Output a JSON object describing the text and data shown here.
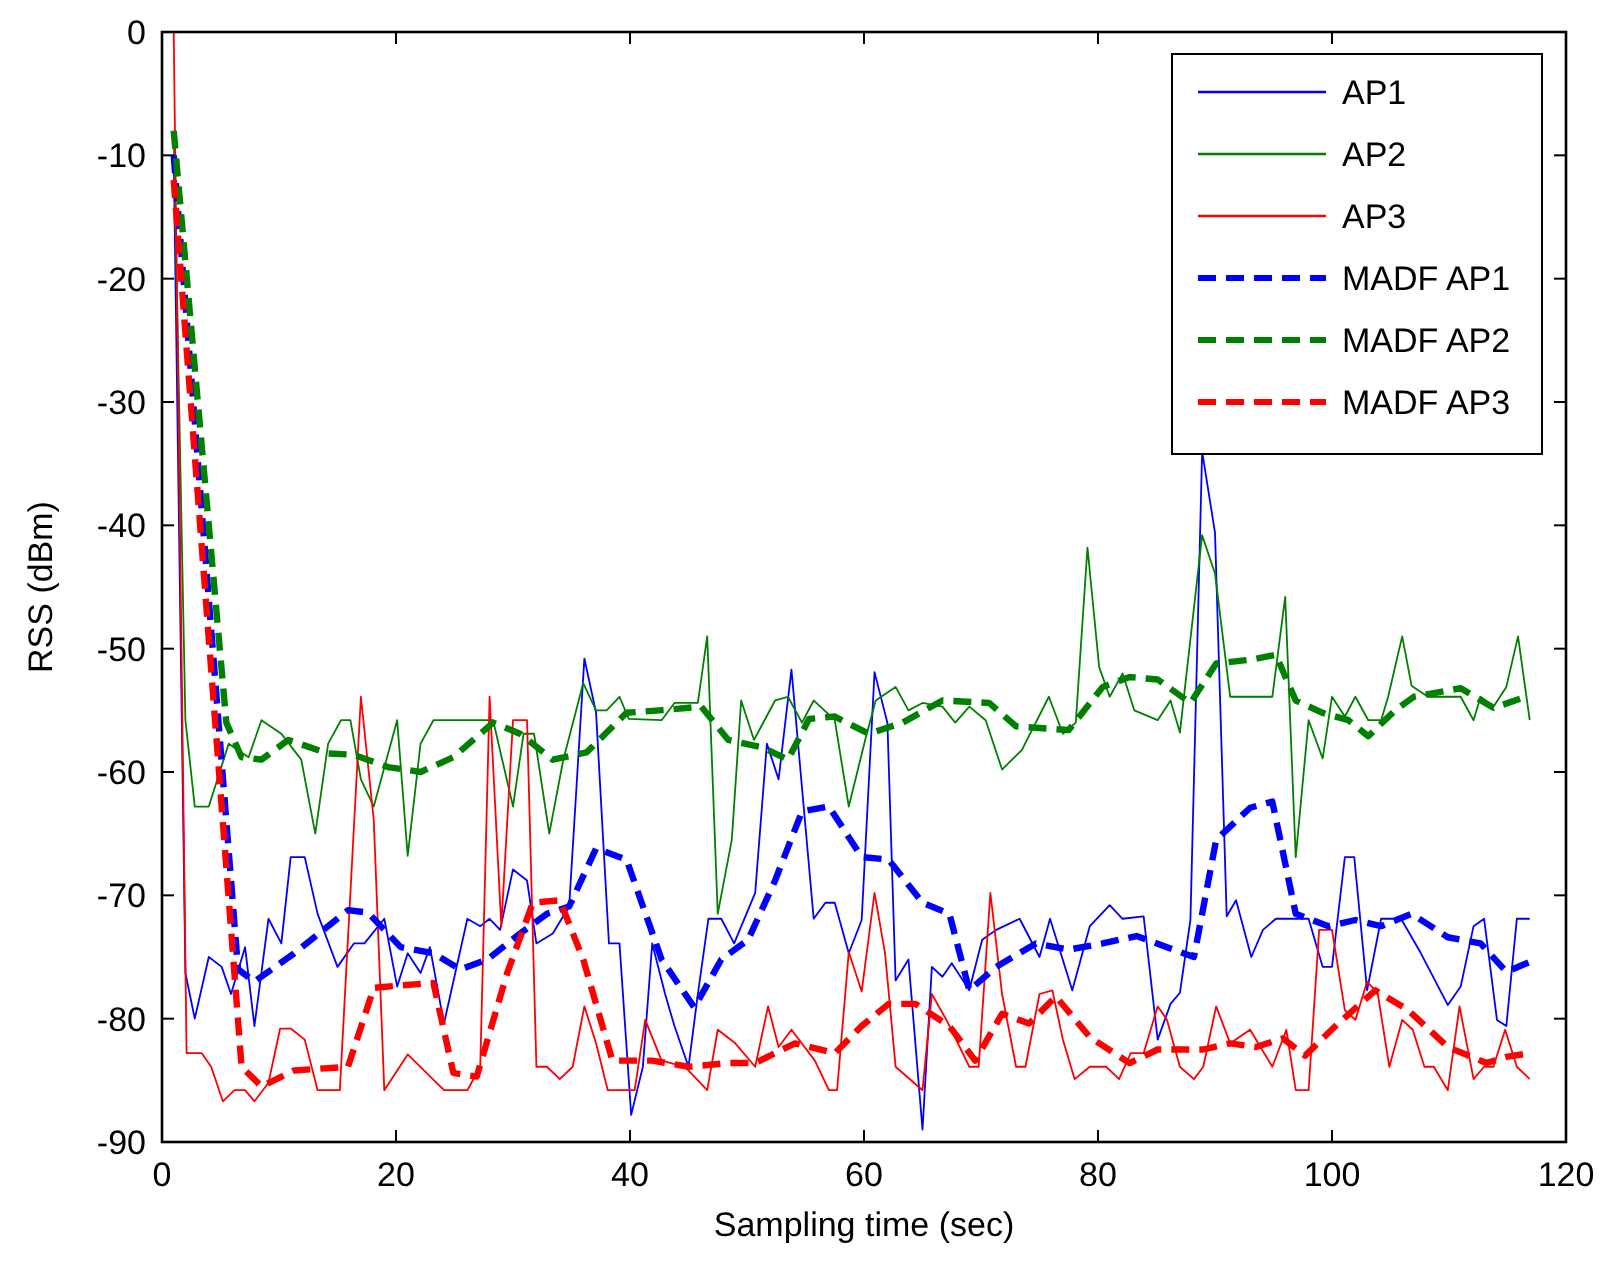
{
  "chart_data": {
    "type": "line",
    "xlabel": "Sampling time (sec)",
    "ylabel": "RSS (dBm)",
    "xlim": [
      0,
      120
    ],
    "ylim": [
      -90,
      0
    ],
    "xticks": [
      0,
      20,
      40,
      60,
      80,
      100,
      120
    ],
    "yticks": [
      -90,
      -80,
      -70,
      -60,
      -50,
      -40,
      -30,
      -20,
      -10,
      0
    ],
    "grid": false,
    "legend": "top right",
    "marker": "none",
    "series": [
      {
        "name": "AP1",
        "color": "#0000ff",
        "line_style": "solid",
        "x": [
          1,
          2,
          2.8,
          4,
          5.1,
          5.9,
          7.1,
          7.9,
          9.1,
          10.2,
          11,
          12.2,
          13.3,
          15,
          16.4,
          17.3,
          19,
          20.1,
          21,
          22.1,
          22.9,
          24.1,
          26.1,
          27.2,
          28,
          28.9,
          30,
          31.2,
          32,
          33.4,
          34.8,
          36.1,
          37.1,
          38.2,
          39.1,
          40.1,
          41.1,
          41.9,
          43,
          43.8,
          45,
          45.8,
          46.7,
          47.8,
          48.9,
          50.7,
          51.7,
          52.7,
          53.8,
          55.7,
          56.7,
          57.5,
          58.7,
          59.8,
          60.9,
          62,
          62.7,
          63.8,
          65,
          65.8,
          66.7,
          67.5,
          69,
          70.1,
          71.3,
          73.3,
          75,
          75.9,
          77.8,
          79.3,
          81,
          82.1,
          83.9,
          85.1,
          86.2,
          87,
          87.9,
          88.9,
          90,
          91,
          91.8,
          93.1,
          94.1,
          95.2,
          98,
          99.2,
          100,
          101.1,
          101.9,
          103,
          104.2,
          105.9,
          107.6,
          109.9,
          111,
          112.1,
          113,
          114.1,
          114.9,
          115.8,
          116.9
        ],
        "values": [
          -10,
          -76.3,
          -80,
          -75,
          -75.8,
          -78,
          -74.2,
          -80.6,
          -71.9,
          -73.9,
          -66.9,
          -66.9,
          -71.5,
          -75.8,
          -73.9,
          -73.9,
          -71.9,
          -77.4,
          -74.7,
          -76.3,
          -74.2,
          -80.4,
          -71.9,
          -72.5,
          -71.9,
          -72.8,
          -67.9,
          -68.8,
          -73.9,
          -73.1,
          -70.9,
          -50.8,
          -55.2,
          -73.9,
          -73.9,
          -87.8,
          -83.9,
          -73.9,
          -78,
          -80.6,
          -83.9,
          -78,
          -71.9,
          -71.9,
          -73.9,
          -69.8,
          -57.7,
          -60.6,
          -51.7,
          -71.9,
          -70.6,
          -70.6,
          -74.7,
          -72,
          -51.9,
          -56,
          -76.9,
          -75.2,
          -89,
          -75.8,
          -76.6,
          -75.5,
          -77.7,
          -73.6,
          -72.8,
          -71.9,
          -75,
          -71.9,
          -77.7,
          -72.5,
          -70.8,
          -71.9,
          -71.7,
          -81.7,
          -78.8,
          -77.9,
          -72,
          -34,
          -40.6,
          -71.7,
          -70.4,
          -75,
          -72.8,
          -71.9,
          -71.9,
          -75.8,
          -75.8,
          -66.9,
          -66.9,
          -77.7,
          -71.9,
          -71.9,
          -74.7,
          -78.9,
          -77.4,
          -72.5,
          -71.9,
          -80.1,
          -80.6,
          -71.9,
          -71.9
        ]
      },
      {
        "name": "AP2",
        "color": "#008000",
        "line_style": "solid",
        "x": [
          1,
          2,
          2.8,
          4,
          5.7,
          7.4,
          8.5,
          10.2,
          11.9,
          13.1,
          14.2,
          15.3,
          16.1,
          17,
          18.1,
          20.1,
          21,
          22.1,
          23.2,
          28.3,
          30,
          30.9,
          31.8,
          33.1,
          34.3,
          36,
          37.1,
          38,
          39.1,
          39.9,
          42.7,
          43.8,
          45.8,
          46.6,
          47.5,
          48.7,
          49.5,
          50.6,
          52.4,
          53.5,
          54.7,
          55.7,
          57.5,
          58.7,
          60.1,
          61,
          62.7,
          63.8,
          65,
          66.7,
          67.8,
          69,
          70.4,
          71.8,
          73.5,
          75.8,
          77,
          78.1,
          79.1,
          80.1,
          81,
          82.1,
          83.1,
          85.1,
          86.2,
          87,
          88.9,
          90,
          91.3,
          94.9,
          96,
          96.9,
          98,
          99.2,
          100,
          101.1,
          102,
          103.1,
          104.2,
          104.8,
          106,
          106.8,
          108.2,
          111,
          112.1,
          112.7,
          113.8,
          114.9,
          115.9,
          116.9
        ],
        "values": [
          -8,
          -55.8,
          -62.8,
          -62.8,
          -57.7,
          -58.8,
          -55.8,
          -56.9,
          -59,
          -65,
          -57.7,
          -55.8,
          -55.8,
          -60.6,
          -62.8,
          -55.8,
          -66.8,
          -57.7,
          -55.8,
          -55.8,
          -62.8,
          -56.9,
          -56.9,
          -65,
          -59,
          -52.8,
          -55,
          -55,
          -53.9,
          -55.7,
          -55.8,
          -54.4,
          -54.4,
          -49,
          -71.5,
          -65.5,
          -54.2,
          -57.4,
          -54.2,
          -53.9,
          -56,
          -54.2,
          -55.8,
          -62.8,
          -57.4,
          -54.2,
          -53.1,
          -55,
          -54.4,
          -54.7,
          -56,
          -54.7,
          -55.8,
          -59.8,
          -58.2,
          -53.9,
          -56.9,
          -56,
          -41.8,
          -51.5,
          -53.9,
          -52,
          -55,
          -55.8,
          -54.2,
          -56.8,
          -40.8,
          -43.9,
          -53.9,
          -53.9,
          -45.8,
          -66.9,
          -55.8,
          -58.9,
          -53.9,
          -55.5,
          -53.9,
          -55.8,
          -55.8,
          -53.9,
          -49,
          -53,
          -53.9,
          -53.9,
          -55.8,
          -53.9,
          -54.7,
          -53.1,
          -49,
          -55.8
        ]
      },
      {
        "name": "AP3",
        "color": "#ff0000",
        "line_style": "solid",
        "x": [
          1,
          2.1,
          3.4,
          4.2,
          5.2,
          6.2,
          7.1,
          7.9,
          9.1,
          10.1,
          11,
          12.2,
          13.3,
          15.2,
          17,
          18.1,
          19,
          21,
          24.1,
          26.1,
          27.2,
          28,
          29,
          30,
          31.2,
          32,
          32.9,
          34,
          35.1,
          36.1,
          37.1,
          38.1,
          39.4,
          40.4,
          41.3,
          42.7,
          44.7,
          46.6,
          47.5,
          49,
          50.7,
          51.8,
          52.7,
          53.8,
          55.8,
          57,
          57.7,
          58.7,
          59.8,
          60.9,
          61.8,
          62.7,
          65,
          65.8,
          67.1,
          69,
          69.8,
          70.8,
          71.8,
          73,
          73.8,
          75,
          76.1,
          77,
          78,
          79.3,
          80.7,
          81.8,
          82.8,
          83.9,
          85.1,
          85.9,
          87,
          88.2,
          89,
          90.1,
          91.3,
          93,
          94.9,
          96.1,
          96.9,
          98,
          98.9,
          100,
          101.1,
          102,
          103,
          103.9,
          104.9,
          106,
          106.9,
          107.9,
          108.7,
          109.9,
          110.9,
          112.1,
          113,
          113.8,
          114.8,
          115.8,
          116.9
        ],
        "values": [
          0,
          -82.8,
          -82.8,
          -83.9,
          -86.7,
          -85.8,
          -85.8,
          -86.7,
          -85.2,
          -80.8,
          -80.8,
          -81.7,
          -85.8,
          -85.8,
          -53.9,
          -63.9,
          -85.8,
          -82.9,
          -85.8,
          -85.8,
          -83.9,
          -53.9,
          -72.5,
          -55.8,
          -55.8,
          -83.9,
          -83.9,
          -84.9,
          -83.9,
          -79,
          -82,
          -85.8,
          -85.8,
          -85.8,
          -80.1,
          -83.4,
          -83.9,
          -85.8,
          -80.9,
          -82,
          -83.9,
          -79,
          -82.3,
          -80.9,
          -83.4,
          -85.8,
          -85.8,
          -74.6,
          -77.8,
          -69.8,
          -74.7,
          -83.9,
          -85.8,
          -78,
          -80.2,
          -83.9,
          -83.9,
          -69.8,
          -78,
          -83.9,
          -83.9,
          -78,
          -77.7,
          -81.7,
          -84.9,
          -83.9,
          -83.9,
          -84.9,
          -82.8,
          -82.8,
          -79,
          -80.1,
          -83.9,
          -84.9,
          -83.9,
          -79,
          -82,
          -80.9,
          -83.9,
          -80.9,
          -85.8,
          -85.8,
          -72.8,
          -72.8,
          -79.3,
          -80.1,
          -77,
          -77.9,
          -83.9,
          -80.1,
          -80.9,
          -83.9,
          -83.9,
          -85.8,
          -79,
          -84.9,
          -83.9,
          -83.9,
          -80.9,
          -83.9,
          -84.9
        ]
      },
      {
        "name": "MADF AP1",
        "color": "#0000ff",
        "line_style": "dashed",
        "x": [
          1,
          6.5,
          7.9,
          11.3,
          15.9,
          17.6,
          20.4,
          23.2,
          25.5,
          27.8,
          30.6,
          32.9,
          34.8,
          37.1,
          39.7,
          42.7,
          45.5,
          47.8,
          50.1,
          52.4,
          54.7,
          57,
          59.8,
          62.1,
          65,
          67.3,
          69,
          71.3,
          74.7,
          77.5,
          80.4,
          83.3,
          87.3,
          88.2,
          90.1,
          93,
          94.9,
          96.9,
          99.7,
          102,
          104.2,
          106.8,
          109.9,
          112.7,
          114.9,
          116.9
        ],
        "values": [
          -10,
          -76,
          -77,
          -74.7,
          -71.2,
          -71.4,
          -74.2,
          -74.7,
          -76,
          -75.2,
          -73.1,
          -71.5,
          -70.9,
          -66.2,
          -67.1,
          -75.2,
          -79.1,
          -75.2,
          -73.6,
          -68.8,
          -63.2,
          -62.8,
          -66.9,
          -67.1,
          -70.6,
          -71.5,
          -77.7,
          -75.8,
          -73.9,
          -74.4,
          -73.9,
          -73.3,
          -74.7,
          -75,
          -65.5,
          -62.9,
          -62.4,
          -71.5,
          -72.5,
          -72,
          -72.5,
          -71.5,
          -73.4,
          -73.9,
          -76.2,
          -75.4
        ]
      },
      {
        "name": "MADF AP2",
        "color": "#008000",
        "line_style": "dashed",
        "x": [
          1,
          5.5,
          6.8,
          8.5,
          10.8,
          14.2,
          16.4,
          19.3,
          22.1,
          24.9,
          28.3,
          30.6,
          33.4,
          36.3,
          39.7,
          42.5,
          46.1,
          48.4,
          51.3,
          53.5,
          55.3,
          57.5,
          60.4,
          63.3,
          66.7,
          70.7,
          73,
          77.5,
          80.4,
          82.7,
          85.1,
          87.9,
          90.1,
          93,
          95.2,
          96.9,
          99.2,
          101.4,
          103.1,
          105.4,
          107,
          111,
          113.8,
          116.6
        ],
        "values": [
          -8,
          -56,
          -58.8,
          -59,
          -57.4,
          -58.5,
          -58.6,
          -59.6,
          -60,
          -58.8,
          -56,
          -56.9,
          -59,
          -58.4,
          -55.2,
          -55,
          -54.7,
          -57.4,
          -58,
          -59,
          -55.7,
          -55.5,
          -56.9,
          -56,
          -54.2,
          -54.4,
          -56.3,
          -56.6,
          -53.1,
          -52.3,
          -52.5,
          -54.4,
          -51.2,
          -50.9,
          -50.5,
          -54.2,
          -55.2,
          -55.8,
          -57.1,
          -55,
          -53.9,
          -53.2,
          -54.8,
          -53.9
        ]
      },
      {
        "name": "MADF AP3",
        "color": "#ff0000",
        "line_style": "dashed",
        "x": [
          1,
          6.8,
          8.5,
          11.3,
          15.9,
          18.1,
          20.4,
          23.2,
          24.9,
          26.9,
          29.5,
          31.7,
          34,
          36,
          38.5,
          41.9,
          45,
          48.4,
          50.7,
          54.1,
          57.5,
          59.8,
          62.1,
          64.4,
          67.3,
          69.5,
          71.8,
          74.1,
          76.4,
          79.3,
          82.7,
          85.1,
          89,
          91.3,
          93.5,
          95.8,
          97.7,
          100.3,
          103.7,
          106.5,
          109.9,
          113.2,
          114.9,
          116.9
        ],
        "values": [
          -12,
          -83.9,
          -85.5,
          -84.2,
          -83.9,
          -77.5,
          -77.3,
          -77.1,
          -84.4,
          -84.7,
          -76.3,
          -70.6,
          -70.4,
          -75.2,
          -83.4,
          -83.4,
          -83.9,
          -83.6,
          -83.6,
          -82,
          -82.8,
          -80.6,
          -78.8,
          -78.8,
          -80.6,
          -83.4,
          -79.6,
          -80.4,
          -78.2,
          -81.5,
          -83.6,
          -82.5,
          -82.5,
          -82,
          -82.3,
          -81.6,
          -83,
          -80.6,
          -77.7,
          -79.3,
          -82.3,
          -83.6,
          -83.1,
          -82.8
        ]
      }
    ]
  }
}
